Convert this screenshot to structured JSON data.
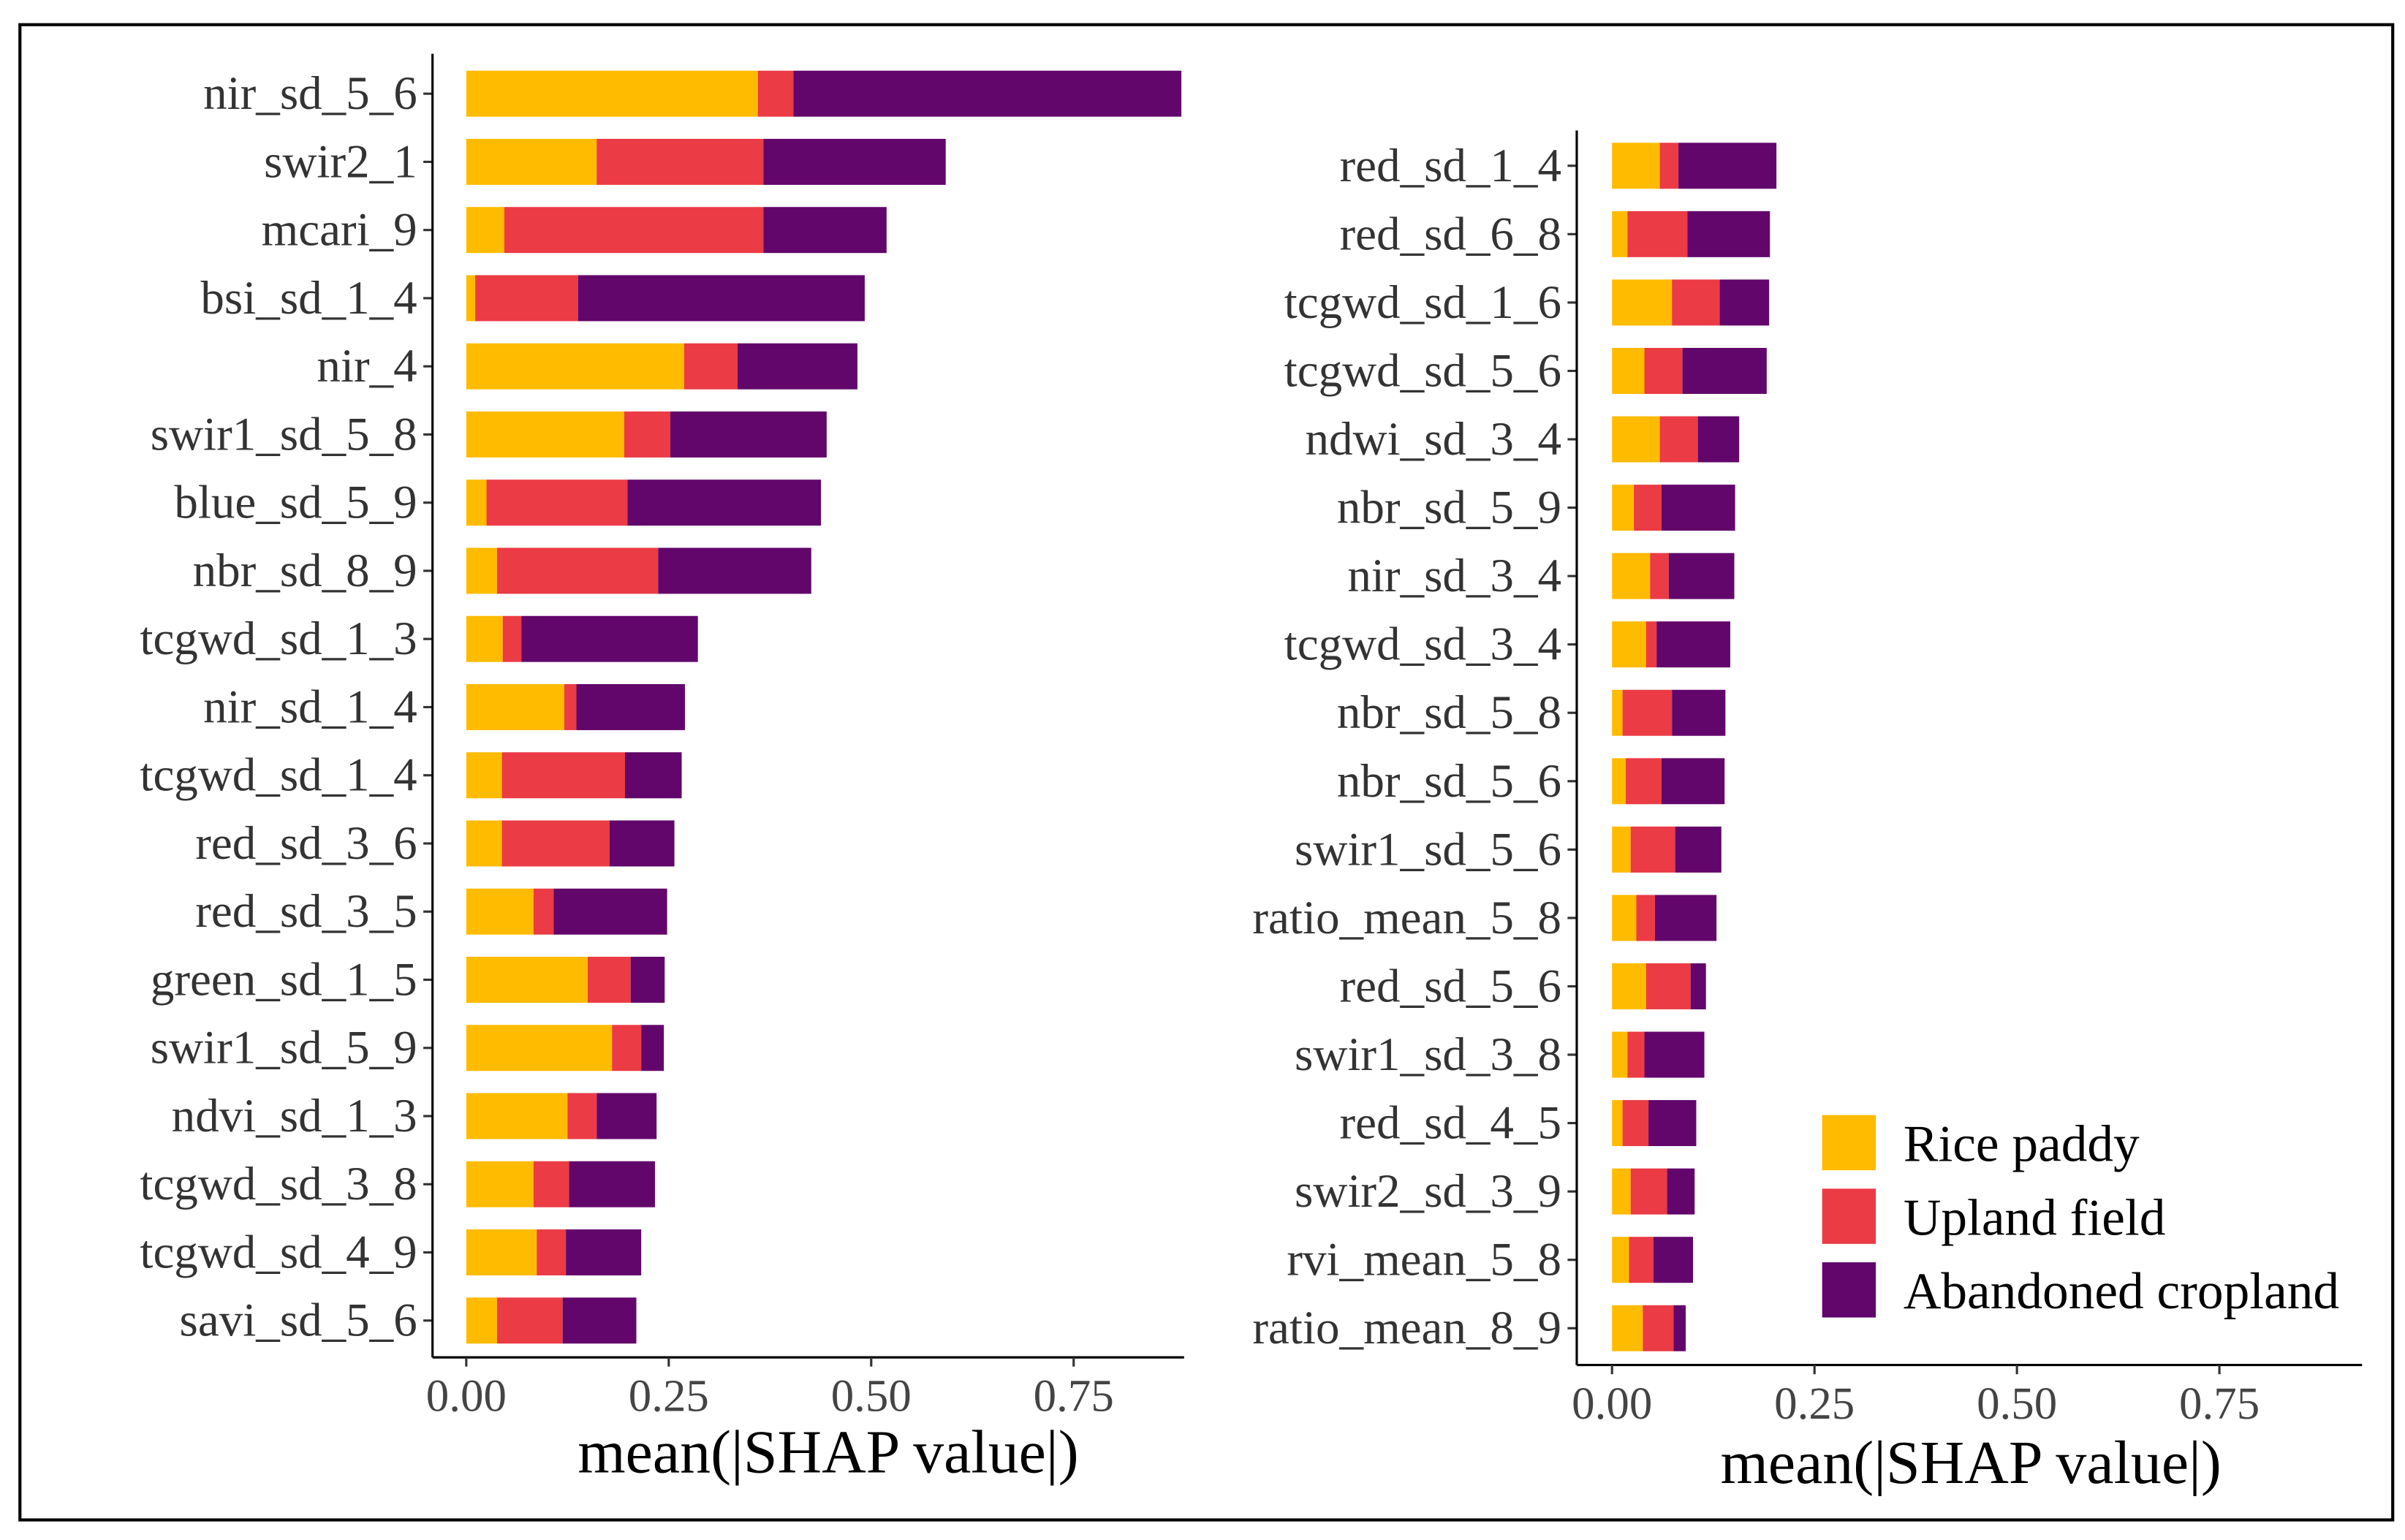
{
  "colors": {
    "Rice paddy": "#FFBB00",
    "Upland field": "#EB3B45",
    "Abandoned cropland": "#62066B"
  },
  "chart_data": [
    {
      "type": "bar",
      "orientation": "horizontal",
      "stacked": true,
      "xlabel": "mean(|SHAP value|)",
      "xlim": [
        0,
        0.9
      ],
      "xticks": [
        "0.00",
        "0.25",
        "0.50",
        "0.75"
      ],
      "xtick_values": [
        0,
        0.25,
        0.5,
        0.75
      ],
      "categories": [
        "nir_sd_5_6",
        "swir2_1",
        "mcari_9",
        "bsi_sd_1_4",
        "nir_4",
        "swir1_sd_5_8",
        "blue_sd_5_9",
        "nbr_sd_8_9",
        "tcgwd_sd_1_3",
        "nir_sd_1_4",
        "tcgwd_sd_1_4",
        "red_sd_3_6",
        "red_sd_3_5",
        "green_sd_1_5",
        "swir1_sd_5_9",
        "ndvi_sd_1_3",
        "tcgwd_sd_3_8",
        "tcgwd_sd_4_9",
        "savi_sd_5_6"
      ],
      "series": [
        {
          "name": "Rice paddy",
          "values": [
            0.36,
            0.161,
            0.047,
            0.011,
            0.269,
            0.195,
            0.025,
            0.038,
            0.045,
            0.121,
            0.044,
            0.044,
            0.083,
            0.15,
            0.18,
            0.125,
            0.083,
            0.087,
            0.038
          ]
        },
        {
          "name": "Upland field",
          "values": [
            0.044,
            0.206,
            0.32,
            0.127,
            0.066,
            0.057,
            0.174,
            0.199,
            0.023,
            0.015,
            0.152,
            0.133,
            0.025,
            0.053,
            0.036,
            0.036,
            0.044,
            0.036,
            0.081
          ]
        },
        {
          "name": "Abandoned cropland",
          "values": [
            0.479,
            0.225,
            0.152,
            0.354,
            0.148,
            0.193,
            0.239,
            0.189,
            0.218,
            0.134,
            0.07,
            0.08,
            0.14,
            0.042,
            0.028,
            0.074,
            0.106,
            0.093,
            0.091
          ]
        }
      ]
    },
    {
      "type": "bar",
      "orientation": "horizontal",
      "stacked": true,
      "xlabel": "mean(|SHAP value|)",
      "xlim": [
        0,
        0.9
      ],
      "xticks": [
        "0.00",
        "0.25",
        "0.50",
        "0.75"
      ],
      "xtick_values": [
        0,
        0.25,
        0.5,
        0.75
      ],
      "categories": [
        "red_sd_1_4",
        "red_sd_6_8",
        "tcgwd_sd_1_6",
        "tcgwd_sd_5_6",
        "ndwi_sd_3_4",
        "nbr_sd_5_9",
        "nir_sd_3_4",
        "tcgwd_sd_3_4",
        "nbr_sd_5_8",
        "nbr_sd_5_6",
        "swir1_sd_5_6",
        "ratio_mean_5_8",
        "red_sd_5_6",
        "swir1_sd_3_8",
        "red_sd_4_5",
        "swir2_sd_3_9",
        "rvi_mean_5_8",
        "ratio_mean_8_9"
      ],
      "series": [
        {
          "name": "Rice paddy",
          "values": [
            0.059,
            0.019,
            0.074,
            0.04,
            0.059,
            0.027,
            0.047,
            0.042,
            0.013,
            0.017,
            0.023,
            0.03,
            0.042,
            0.019,
            0.013,
            0.023,
            0.021,
            0.038
          ]
        },
        {
          "name": "Upland field",
          "values": [
            0.023,
            0.074,
            0.059,
            0.047,
            0.047,
            0.034,
            0.023,
            0.013,
            0.061,
            0.044,
            0.055,
            0.023,
            0.055,
            0.021,
            0.032,
            0.045,
            0.03,
            0.038
          ]
        },
        {
          "name": "Abandoned cropland",
          "values": [
            0.121,
            0.102,
            0.061,
            0.104,
            0.051,
            0.091,
            0.081,
            0.091,
            0.066,
            0.078,
            0.057,
            0.076,
            0.019,
            0.074,
            0.059,
            0.034,
            0.049,
            0.015
          ]
        }
      ],
      "legend": {
        "position": "bottom-right",
        "entries": [
          "Rice paddy",
          "Upland field",
          "Abandoned cropland"
        ]
      }
    }
  ]
}
